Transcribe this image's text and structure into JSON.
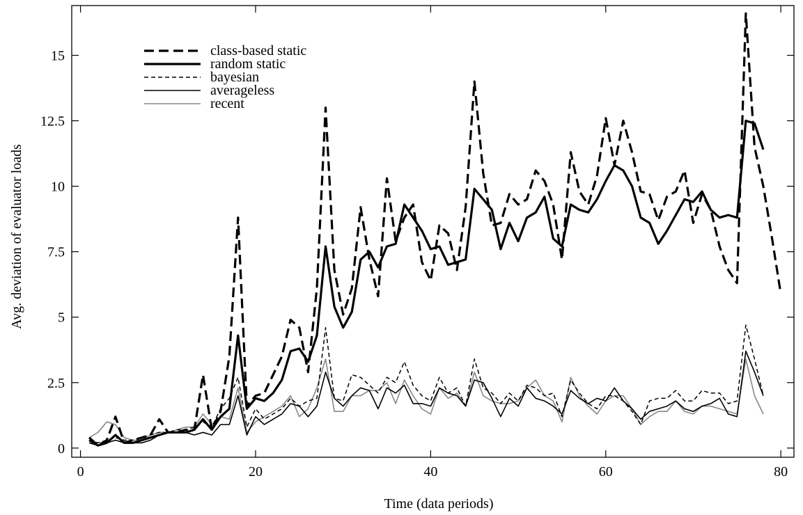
{
  "chart_data": {
    "type": "line",
    "title": "",
    "xlabel": "Time (data periods)",
    "ylabel": "Avg. deviation of evaluator loads",
    "xlim": [
      -1,
      81.5
    ],
    "ylim": [
      -0.35,
      16.9
    ],
    "xticks": [
      0,
      20,
      40,
      60,
      80
    ],
    "xtick_labels": [
      "0",
      "20",
      "40",
      "60",
      "80"
    ],
    "yticks": [
      0,
      2.5,
      5,
      7.5,
      10,
      12.5,
      15
    ],
    "ytick_labels": [
      "0",
      "2.5",
      "5",
      "7.5",
      "10",
      "12.5",
      "15"
    ],
    "grid": false,
    "legend_position": "top-left",
    "series": [
      {
        "name": "class-based static",
        "color": "#000000",
        "style": "thick-dashed",
        "x": [
          1,
          2,
          3,
          4,
          5,
          6,
          7,
          8,
          9,
          10,
          11,
          12,
          13,
          14,
          15,
          16,
          17,
          18,
          19,
          20,
          21,
          22,
          23,
          24,
          25,
          26,
          27,
          28,
          29,
          30,
          31,
          32,
          33,
          34,
          35,
          36,
          37,
          38,
          39,
          40,
          41,
          42,
          43,
          44,
          45,
          46,
          47,
          48,
          49,
          50,
          51,
          52,
          53,
          54,
          55,
          56,
          57,
          58,
          59,
          60,
          61,
          62,
          63,
          64,
          65,
          66,
          67,
          68,
          69,
          70,
          71,
          72,
          73,
          74,
          75,
          76,
          77,
          78,
          79,
          80
        ],
        "y": [
          0.4,
          0.1,
          0.3,
          1.2,
          0.2,
          0.3,
          0.4,
          0.5,
          1.1,
          0.6,
          0.6,
          0.7,
          0.7,
          2.8,
          0.7,
          1.4,
          3.5,
          8.8,
          1.6,
          2.0,
          2.1,
          2.8,
          3.5,
          4.9,
          4.6,
          2.9,
          6.1,
          13.0,
          6.8,
          5.1,
          6.1,
          9.2,
          7.2,
          5.8,
          10.3,
          7.9,
          8.8,
          9.3,
          7.1,
          6.4,
          8.5,
          8.2,
          6.8,
          9.2,
          14.0,
          10.5,
          8.5,
          8.6,
          9.7,
          9.3,
          9.5,
          10.6,
          10.2,
          9.3,
          7.2,
          11.3,
          9.8,
          9.3,
          10.4,
          12.6,
          10.8,
          12.5,
          11.3,
          9.8,
          9.7,
          8.7,
          9.6,
          9.8,
          10.6,
          8.6,
          9.7,
          9.1,
          7.7,
          6.8,
          6.3,
          16.6,
          11.5,
          10.0,
          8.0,
          5.9
        ]
      },
      {
        "name": "random static",
        "color": "#000000",
        "style": "thick-solid",
        "x": [
          1,
          2,
          3,
          4,
          5,
          6,
          7,
          8,
          9,
          10,
          11,
          12,
          13,
          14,
          15,
          16,
          17,
          18,
          19,
          20,
          21,
          22,
          23,
          24,
          25,
          26,
          27,
          28,
          29,
          30,
          31,
          32,
          33,
          34,
          35,
          36,
          37,
          38,
          39,
          40,
          41,
          42,
          43,
          44,
          45,
          46,
          47,
          48,
          49,
          50,
          51,
          52,
          53,
          54,
          55,
          56,
          57,
          58,
          59,
          60,
          61,
          62,
          63,
          64,
          65,
          66,
          67,
          68,
          69,
          70,
          71,
          72,
          73,
          74,
          75,
          76,
          77,
          78
        ],
        "y": [
          0.3,
          0.1,
          0.2,
          0.5,
          0.2,
          0.2,
          0.3,
          0.4,
          0.5,
          0.6,
          0.6,
          0.6,
          0.7,
          1.1,
          0.7,
          1.2,
          1.5,
          4.3,
          1.5,
          1.9,
          1.8,
          2.1,
          2.6,
          3.7,
          3.8,
          3.3,
          4.3,
          7.7,
          5.4,
          4.6,
          5.2,
          7.2,
          7.5,
          6.9,
          7.7,
          7.8,
          9.3,
          8.8,
          8.3,
          7.6,
          7.7,
          7.0,
          7.1,
          7.2,
          9.9,
          9.5,
          9.1,
          7.6,
          8.6,
          7.9,
          8.8,
          9.0,
          9.6,
          8.0,
          7.7,
          9.3,
          9.1,
          9.0,
          9.5,
          10.2,
          10.8,
          10.6,
          10.0,
          8.8,
          8.6,
          7.8,
          8.3,
          8.9,
          9.5,
          9.4,
          9.8,
          9.1,
          8.8,
          8.9,
          8.8,
          12.5,
          12.4,
          11.4
        ]
      },
      {
        "name": "bayesian",
        "color": "#000000",
        "style": "thin-dashed",
        "x": [
          1,
          2,
          3,
          4,
          5,
          6,
          7,
          8,
          9,
          10,
          11,
          12,
          13,
          14,
          15,
          16,
          17,
          18,
          19,
          20,
          21,
          22,
          23,
          24,
          25,
          26,
          27,
          28,
          29,
          30,
          31,
          32,
          33,
          34,
          35,
          36,
          37,
          38,
          39,
          40,
          41,
          42,
          43,
          44,
          45,
          46,
          47,
          48,
          49,
          50,
          51,
          52,
          53,
          54,
          55,
          56,
          57,
          58,
          59,
          60,
          61,
          62,
          63,
          64,
          65,
          66,
          67,
          68,
          69,
          70,
          71,
          72,
          73,
          74,
          75,
          76,
          77,
          78
        ],
        "y": [
          0.3,
          0.2,
          0.3,
          0.4,
          0.3,
          0.3,
          0.4,
          0.5,
          0.6,
          0.6,
          0.7,
          0.7,
          0.8,
          1.0,
          0.8,
          1.5,
          1.9,
          2.7,
          0.8,
          1.5,
          1.1,
          1.3,
          1.5,
          1.9,
          1.6,
          1.8,
          1.9,
          4.6,
          1.9,
          1.8,
          2.8,
          2.7,
          2.4,
          2.1,
          2.7,
          2.5,
          3.3,
          2.4,
          2.0,
          1.8,
          2.7,
          2.1,
          2.3,
          1.6,
          3.4,
          2.3,
          2.1,
          1.7,
          2.1,
          1.8,
          2.4,
          2.3,
          2.0,
          2.1,
          1.2,
          2.6,
          2.1,
          1.7,
          1.5,
          2.0,
          2.0,
          1.8,
          1.4,
          0.9,
          1.8,
          1.9,
          1.9,
          2.2,
          1.8,
          1.8,
          2.2,
          2.1,
          2.1,
          1.7,
          1.8,
          4.7,
          3.4,
          2.0
        ]
      },
      {
        "name": "averageless",
        "color": "#000000",
        "style": "thin-solid",
        "x": [
          1,
          2,
          3,
          4,
          5,
          6,
          7,
          8,
          9,
          10,
          11,
          12,
          13,
          14,
          15,
          16,
          17,
          18,
          19,
          20,
          21,
          22,
          23,
          24,
          25,
          26,
          27,
          28,
          29,
          30,
          31,
          32,
          33,
          34,
          35,
          36,
          37,
          38,
          39,
          40,
          41,
          42,
          43,
          44,
          45,
          46,
          47,
          48,
          49,
          50,
          51,
          52,
          53,
          54,
          55,
          56,
          57,
          58,
          59,
          60,
          61,
          62,
          63,
          64,
          65,
          66,
          67,
          68,
          69,
          70,
          71,
          72,
          73,
          74,
          75,
          76,
          77,
          78
        ],
        "y": [
          0.2,
          0.1,
          0.2,
          0.3,
          0.2,
          0.2,
          0.2,
          0.3,
          0.5,
          0.6,
          0.6,
          0.6,
          0.5,
          0.6,
          0.5,
          0.9,
          0.9,
          2.0,
          0.5,
          1.2,
          0.9,
          1.1,
          1.3,
          1.7,
          1.6,
          1.2,
          1.6,
          2.9,
          1.9,
          1.6,
          2.0,
          2.3,
          2.2,
          1.5,
          2.3,
          2.1,
          2.4,
          1.7,
          1.7,
          1.6,
          2.3,
          2.1,
          2.0,
          1.6,
          2.6,
          2.5,
          1.9,
          1.2,
          1.9,
          1.6,
          2.3,
          1.9,
          1.8,
          1.6,
          1.3,
          2.2,
          1.9,
          1.7,
          1.9,
          1.8,
          2.3,
          1.8,
          1.5,
          1.1,
          1.4,
          1.5,
          1.6,
          1.8,
          1.5,
          1.4,
          1.6,
          1.7,
          1.9,
          1.3,
          1.2,
          3.7,
          2.9,
          2.0
        ]
      },
      {
        "name": "recent",
        "color": "#888888",
        "style": "thin-solid",
        "x": [
          1,
          2,
          3,
          4,
          5,
          6,
          7,
          8,
          9,
          10,
          11,
          12,
          13,
          14,
          15,
          16,
          17,
          18,
          19,
          20,
          21,
          22,
          23,
          24,
          25,
          26,
          27,
          28,
          29,
          30,
          31,
          32,
          33,
          34,
          35,
          36,
          37,
          38,
          39,
          40,
          41,
          42,
          43,
          44,
          45,
          46,
          47,
          48,
          49,
          50,
          51,
          52,
          53,
          54,
          55,
          56,
          57,
          58,
          59,
          60,
          61,
          62,
          63,
          64,
          65,
          66,
          67,
          68,
          69,
          70,
          71,
          72,
          73,
          74,
          75,
          76,
          77,
          78
        ],
        "y": [
          0.4,
          0.6,
          1.0,
          0.9,
          0.4,
          0.3,
          0.3,
          0.5,
          0.6,
          0.6,
          0.7,
          0.8,
          0.8,
          1.3,
          0.9,
          1.2,
          1.1,
          2.3,
          0.6,
          1.0,
          1.2,
          1.4,
          1.6,
          2.0,
          1.2,
          1.5,
          2.3,
          3.4,
          1.4,
          1.4,
          2.0,
          2.0,
          2.2,
          2.2,
          2.5,
          1.7,
          2.6,
          2.0,
          1.5,
          1.3,
          2.3,
          1.9,
          2.1,
          1.6,
          2.9,
          2.0,
          1.8,
          1.7,
          1.7,
          1.8,
          2.3,
          2.6,
          2.0,
          1.8,
          1.0,
          2.7,
          2.0,
          1.6,
          1.3,
          1.8,
          2.0,
          2.0,
          1.5,
          0.9,
          1.2,
          1.4,
          1.4,
          1.8,
          1.4,
          1.3,
          1.6,
          1.6,
          1.5,
          1.4,
          1.3,
          3.4,
          2.0,
          1.3
        ]
      }
    ]
  }
}
